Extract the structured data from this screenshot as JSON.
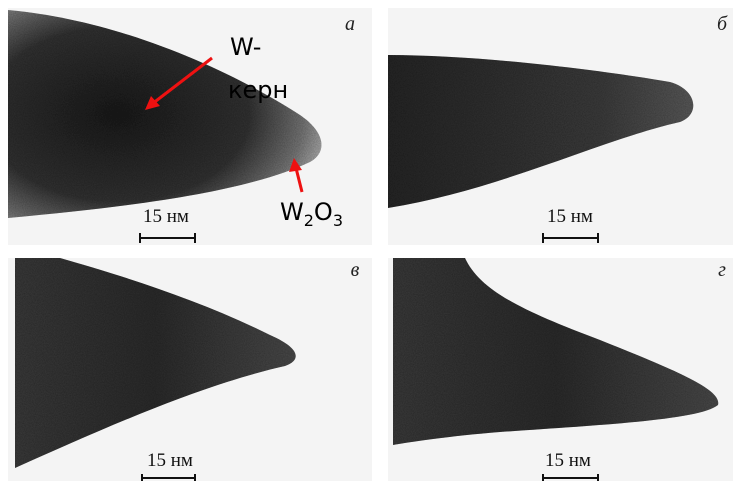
{
  "panels": [
    {
      "letter": "а",
      "scale_label": "15 нм"
    },
    {
      "letter": "б",
      "scale_label": "15 нм"
    },
    {
      "letter": "в",
      "scale_label": "15 нм"
    },
    {
      "letter": "г",
      "scale_label": "15 нм"
    }
  ],
  "annotations": {
    "core": [
      "W-",
      "керн"
    ],
    "oxide": [
      "W",
      "2",
      "O",
      "3"
    ]
  }
}
